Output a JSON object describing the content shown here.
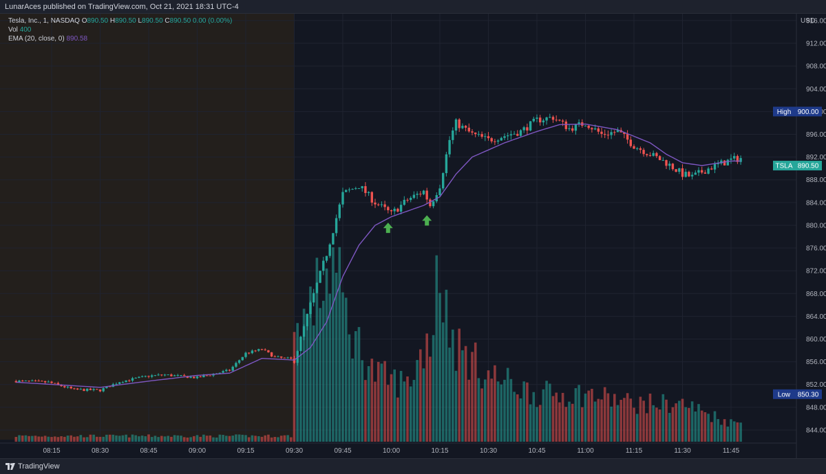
{
  "header": {
    "publisher_line": "LunarAces published on TradingView.com, Oct 21, 2021 18:31 UTC-4"
  },
  "legend": {
    "symbol": "Tesla, Inc., 1, NASDAQ",
    "o_label": "O",
    "o_value": "890.50",
    "h_label": "H",
    "h_value": "890.50",
    "l_label": "L",
    "l_value": "890.50",
    "c_label": "C",
    "c_value": "890.50",
    "change": "0.00 (0.00%)",
    "vol_label": "Vol",
    "vol_value": "400",
    "ema_label": "EMA (20, close, 0)",
    "ema_value": "890.58"
  },
  "footer": {
    "brand": "TradingView"
  },
  "colors": {
    "background": "#131722",
    "premarket": "#231f1c",
    "up": "#26a69a",
    "down": "#ef5350",
    "ema": "#7e57c2",
    "arrow": "#4caf50",
    "axis_text": "#b2b5be",
    "high_low_tag": "#1e3a8a"
  },
  "chart_data": {
    "type": "candlestick",
    "currency": "USD",
    "y_ticks": [
      "916.00",
      "912.00",
      "908.00",
      "904.00",
      "900.00",
      "896.00",
      "892.00",
      "888.00",
      "884.00",
      "880.00",
      "876.00",
      "872.00",
      "868.00",
      "864.00",
      "860.00",
      "856.00",
      "852.00",
      "848.00",
      "844.00"
    ],
    "x_ticks": [
      "08:15",
      "08:30",
      "08:45",
      "09:00",
      "09:15",
      "09:30",
      "09:45",
      "10:00",
      "10:15",
      "10:30",
      "10:45",
      "11:00",
      "11:15",
      "11:30",
      "11:45"
    ],
    "ylim": [
      841.7,
      917.2
    ],
    "price_path": [
      [
        "08:04",
        852.6
      ],
      [
        "08:14",
        852.4
      ],
      [
        "08:22",
        851.1
      ],
      [
        "08:30",
        851.0
      ],
      [
        "08:36",
        852.5
      ],
      [
        "08:45",
        853.5
      ],
      [
        "08:50",
        853.7
      ],
      [
        "09:00",
        853.2
      ],
      [
        "09:10",
        854.5
      ],
      [
        "09:15",
        857.5
      ],
      [
        "09:20",
        858.2
      ],
      [
        "09:24",
        856.8
      ],
      [
        "09:30",
        856.4
      ],
      [
        "09:32",
        860.0
      ],
      [
        "09:35",
        866.0
      ],
      [
        "09:40",
        875.0
      ],
      [
        "09:45",
        885.5
      ],
      [
        "09:50",
        887.0
      ],
      [
        "09:55",
        884.0
      ],
      [
        "10:00",
        882.0
      ],
      [
        "10:05",
        884.5
      ],
      [
        "10:10",
        886.0
      ],
      [
        "10:12",
        883.5
      ],
      [
        "10:15",
        887.0
      ],
      [
        "10:18",
        895.0
      ],
      [
        "10:20",
        898.0
      ],
      [
        "10:25",
        896.0
      ],
      [
        "10:30",
        895.0
      ],
      [
        "10:40",
        896.5
      ],
      [
        "10:45",
        898.5
      ],
      [
        "10:50",
        899.0
      ],
      [
        "10:55",
        897.0
      ],
      [
        "11:00",
        898.0
      ],
      [
        "11:05",
        896.0
      ],
      [
        "11:10",
        896.5
      ],
      [
        "11:15",
        894.0
      ],
      [
        "11:20",
        892.5
      ],
      [
        "11:25",
        891.0
      ],
      [
        "11:30",
        889.0
      ],
      [
        "11:33",
        888.5
      ],
      [
        "11:38",
        890.0
      ],
      [
        "11:45",
        891.5
      ],
      [
        "11:48",
        891.8
      ]
    ],
    "ema_path": [
      [
        "08:04",
        852.4
      ],
      [
        "08:30",
        851.5
      ],
      [
        "08:45",
        852.6
      ],
      [
        "09:00",
        853.6
      ],
      [
        "09:10",
        854.0
      ],
      [
        "09:15",
        855.3
      ],
      [
        "09:20",
        856.6
      ],
      [
        "09:30",
        856.3
      ],
      [
        "09:35",
        858.5
      ],
      [
        "09:40",
        863.0
      ],
      [
        "09:45",
        871.0
      ],
      [
        "09:50",
        876.5
      ],
      [
        "09:55",
        880.0
      ],
      [
        "10:00",
        881.5
      ],
      [
        "10:10",
        883.5
      ],
      [
        "10:15",
        885.0
      ],
      [
        "10:20",
        889.0
      ],
      [
        "10:25",
        892.0
      ],
      [
        "10:35",
        894.5
      ],
      [
        "10:45",
        896.5
      ],
      [
        "10:52",
        897.7
      ],
      [
        "11:00",
        897.8
      ],
      [
        "11:10",
        896.8
      ],
      [
        "11:20",
        894.5
      ],
      [
        "11:25",
        892.5
      ],
      [
        "11:30",
        891.0
      ],
      [
        "11:36",
        890.5
      ],
      [
        "11:45",
        891.3
      ]
    ],
    "volume_path": [
      [
        "08:04",
        0.03
      ],
      [
        "09:29",
        0.03
      ],
      [
        "09:30",
        0.55
      ],
      [
        "09:35",
        0.7
      ],
      [
        "09:42",
        0.95
      ],
      [
        "09:47",
        0.6
      ],
      [
        "09:55",
        0.35
      ],
      [
        "10:05",
        0.3
      ],
      [
        "10:13",
        0.6
      ],
      [
        "10:14",
        1.0
      ],
      [
        "10:16",
        0.75
      ],
      [
        "10:20",
        0.5
      ],
      [
        "10:30",
        0.35
      ],
      [
        "10:45",
        0.25
      ],
      [
        "11:00",
        0.25
      ],
      [
        "11:15",
        0.2
      ],
      [
        "11:30",
        0.2
      ],
      [
        "11:45",
        0.1
      ],
      [
        "11:48",
        0.1
      ]
    ],
    "volume_max": "≈ 1/2 of chart height",
    "last_price": "890.50",
    "last_tag": "TSLA",
    "high": {
      "label": "High",
      "value": "900.00"
    },
    "low": {
      "label": "Low",
      "value": "850.30"
    },
    "annotations": [
      {
        "type": "arrow-up",
        "time": "09:59",
        "price": 879.5
      },
      {
        "type": "arrow-up",
        "time": "10:11",
        "price": 880.8
      }
    ]
  }
}
